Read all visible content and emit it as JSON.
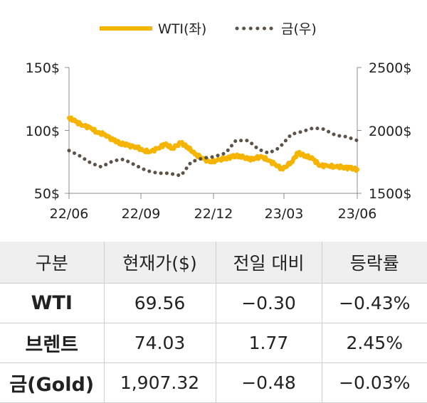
{
  "chart_data": {
    "type": "line",
    "legend_position": "top",
    "x_ticks": [
      "22/06",
      "22/09",
      "22/12",
      "23/03",
      "23/06"
    ],
    "y_left": {
      "ticks": [
        "150$",
        "100$",
        "50$"
      ],
      "range": [
        50,
        150
      ]
    },
    "y_right": {
      "ticks": [
        "2500$",
        "2000$",
        "1500$"
      ],
      "range": [
        1500,
        2500
      ]
    },
    "series": [
      {
        "name": "WTI(좌)",
        "axis": "left",
        "style": "solid",
        "color": "#F5B400",
        "dates": [
          "2022-06-01",
          "2022-06-10",
          "2022-06-20",
          "2022-07-01",
          "2022-07-10",
          "2022-07-20",
          "2022-08-01",
          "2022-08-10",
          "2022-08-20",
          "2022-09-01",
          "2022-09-10",
          "2022-09-20",
          "2022-10-01",
          "2022-10-10",
          "2022-10-20",
          "2022-11-01",
          "2022-11-10",
          "2022-11-20",
          "2022-12-01",
          "2022-12-10",
          "2022-12-20",
          "2023-01-01",
          "2023-01-10",
          "2023-01-20",
          "2023-02-01",
          "2023-02-10",
          "2023-02-20",
          "2023-03-01",
          "2023-03-10",
          "2023-03-20",
          "2023-04-01",
          "2023-04-10",
          "2023-04-20",
          "2023-05-01",
          "2023-05-10",
          "2023-05-20",
          "2023-06-01",
          "2023-06-10",
          "2023-06-20",
          "2023-06-30"
        ],
        "values": [
          110,
          107,
          104,
          102,
          98,
          97,
          92,
          90,
          88,
          87,
          84,
          83,
          86,
          89,
          86,
          90,
          87,
          81,
          78,
          75,
          76,
          78,
          79,
          80,
          77,
          78,
          79,
          76,
          73,
          69,
          75,
          82,
          80,
          77,
          72,
          72,
          71,
          71,
          70,
          69
        ]
      },
      {
        "name": "금(우)",
        "axis": "right",
        "style": "dotted",
        "color": "#5C5248",
        "dates": [
          "2022-06-01",
          "2022-06-15",
          "2022-07-01",
          "2022-07-15",
          "2022-08-01",
          "2022-08-15",
          "2022-09-01",
          "2022-09-15",
          "2022-10-01",
          "2022-10-15",
          "2022-11-01",
          "2022-11-15",
          "2022-12-01",
          "2022-12-15",
          "2023-01-01",
          "2023-01-15",
          "2023-02-01",
          "2023-02-15",
          "2023-03-01",
          "2023-03-15",
          "2023-04-01",
          "2023-04-15",
          "2023-05-01",
          "2023-05-15",
          "2023-06-01",
          "2023-06-15",
          "2023-06-30"
        ],
        "values": [
          1840,
          1800,
          1740,
          1710,
          1760,
          1770,
          1720,
          1680,
          1660,
          1660,
          1640,
          1750,
          1780,
          1790,
          1820,
          1920,
          1920,
          1850,
          1820,
          1860,
          1970,
          1990,
          2020,
          2010,
          1960,
          1950,
          1920
        ]
      }
    ]
  },
  "table": {
    "headers": [
      "구분",
      "현재가($)",
      "전일 대비",
      "등락률"
    ],
    "rows": [
      [
        "WTI",
        "69.56",
        "−0.30",
        "−0.43%"
      ],
      [
        "브렌트",
        "74.03",
        "1.77",
        "2.45%"
      ],
      [
        "금(Gold)",
        "1,907.32",
        "−0.48",
        "−0.03%"
      ]
    ]
  }
}
